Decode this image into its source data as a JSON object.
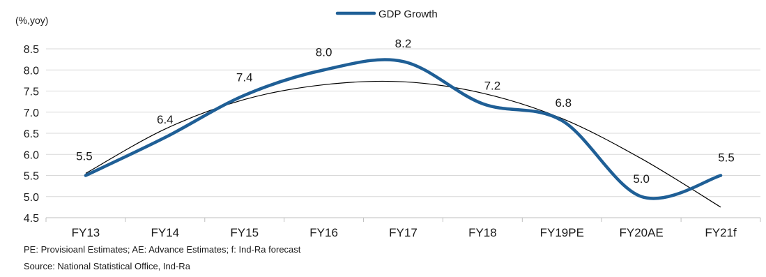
{
  "chart_data": {
    "type": "line",
    "title": "",
    "ylabel": "(%,yoy)",
    "xlabel": "",
    "categories": [
      "FY13",
      "FY14",
      "FY15",
      "FY16",
      "FY17",
      "FY18",
      "FY19PE",
      "FY20AE",
      "FY21f"
    ],
    "series": [
      {
        "name": "GDP Growth",
        "values": [
          5.5,
          6.4,
          7.4,
          8.0,
          8.2,
          7.2,
          6.8,
          5.0,
          5.5
        ],
        "color": "#1f5f96"
      }
    ],
    "data_labels": [
      "5.5",
      "6.4",
      "7.4",
      "8.0",
      "8.2",
      "7.2",
      "6.8",
      "5.0",
      "5.5"
    ],
    "trendline": {
      "type": "polynomial",
      "values": [
        5.55,
        6.6,
        7.3,
        7.65,
        7.72,
        7.45,
        6.85,
        5.9,
        4.75
      ],
      "color": "#000000"
    },
    "ylim": [
      4.5,
      8.5
    ],
    "yticks": [
      "4.5",
      "5.0",
      "5.5",
      "6.0",
      "6.5",
      "7.0",
      "7.5",
      "8.0",
      "8.5"
    ],
    "grid": true,
    "legend": "top-center"
  },
  "notes": {
    "abbreviations": "PE: Provisioanl Estimates; AE: Advance Estimates; f: Ind-Ra forecast",
    "source": "Source: National Statistical Office, Ind-Ra"
  }
}
